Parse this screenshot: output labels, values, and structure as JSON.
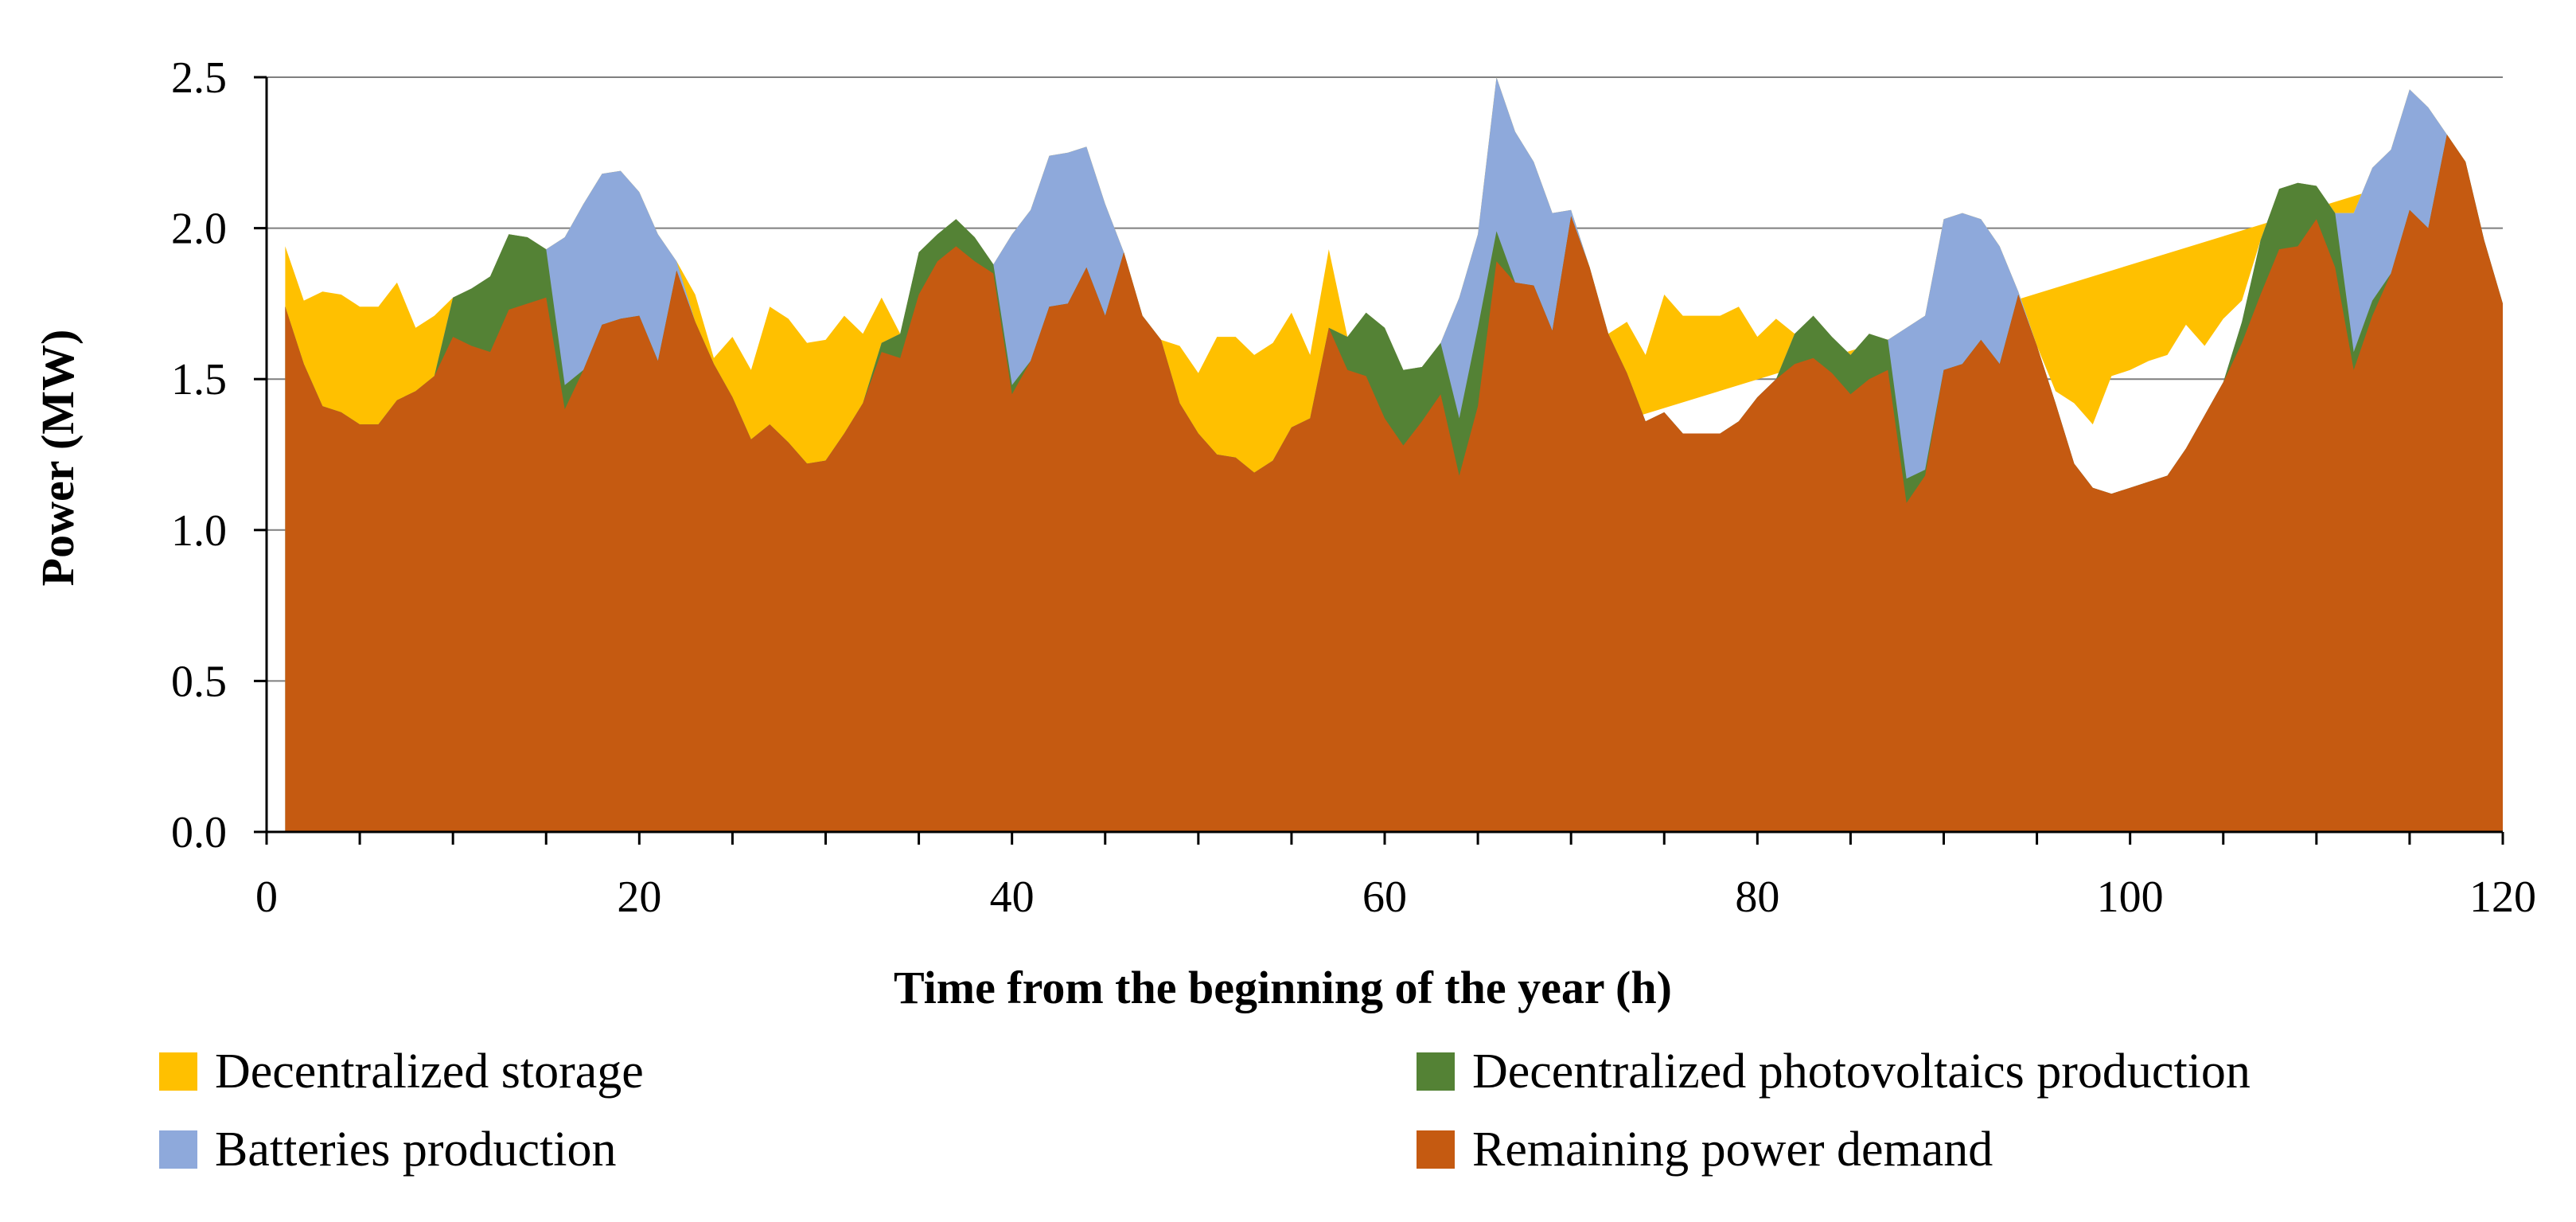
{
  "chart_data": {
    "type": "area",
    "stacked": true,
    "title": "",
    "xlabel": "Time from the beginning of the year (h)",
    "ylabel": "Power (MW)",
    "xlim": [
      0,
      120
    ],
    "ylim": [
      0,
      2.5
    ],
    "x_ticks": [
      0,
      20,
      40,
      60,
      80,
      100,
      120
    ],
    "y_ticks": [
      0.0,
      0.5,
      1.0,
      1.5,
      2.0,
      2.5
    ],
    "x_tick_labels": [
      "0",
      "20",
      "40",
      "60",
      "80",
      "100",
      "120"
    ],
    "y_tick_labels": [
      "0.0",
      "0.5",
      "1.0",
      "1.5",
      "2.0",
      "2.5"
    ],
    "grid": "horizontal",
    "legend_position": "bottom",
    "x_start": 1,
    "x_step": 1,
    "total": [
      1.94,
      1.76,
      1.79,
      1.78,
      1.74,
      1.74,
      1.82,
      1.67,
      1.71,
      1.77,
      1.8,
      1.84,
      1.98,
      1.97,
      1.93,
      1.97,
      2.08,
      2.18,
      2.19,
      2.12,
      1.98,
      1.89,
      1.78,
      1.57,
      1.64,
      1.53,
      1.74,
      1.7,
      1.62,
      1.63,
      1.71,
      1.65,
      1.77,
      1.65,
      1.92,
      1.98,
      2.03,
      1.97,
      1.88,
      1.98,
      2.06,
      2.24,
      2.25,
      2.27,
      2.08,
      1.92,
      1.7,
      1.62,
      1.61,
      1.52,
      1.64,
      1.64,
      1.58,
      1.62,
      1.72,
      1.58,
      1.93,
      1.64,
      1.72,
      1.67,
      1.53,
      1.54,
      1.62,
      1.77,
      1.98,
      2.4,
      2.32,
      2.22,
      2.05,
      2.06,
      1.85,
      1.64,
      1.69,
      1.58,
      1.78,
      1.71,
      1.71,
      1.71,
      1.74,
      1.64,
      1.7,
      1.65,
      1.71,
      1.64,
      1.58,
      1.65,
      1.63,
      1.67,
      1.71,
      2.03,
      2.05,
      2.03,
      1.94,
      1.79,
      1.64,
      1.46,
      1.42,
      1.35,
      1.51,
      1.53,
      1.56,
      1.58,
      1.68,
      1.61,
      1.7,
      1.69,
      1.96,
      2.13,
      2.15,
      2.14,
      2.05,
      2.1,
      2.2,
      2.32,
      2.46,
      2.4,
      2.31,
      2.22,
      1.96,
      1.75
    ],
    "series": [
      {
        "name": "Remaining power demand",
        "color": "#C55A11",
        "values": [
          1.74,
          1.55,
          1.41,
          1.39,
          1.35,
          1.35,
          1.43,
          1.46,
          1.51,
          1.64,
          1.61,
          1.59,
          1.73,
          1.75,
          1.77,
          1.4,
          1.53,
          1.68,
          1.7,
          1.71,
          1.56,
          1.86,
          1.69,
          1.55,
          1.44,
          1.3,
          1.35,
          1.29,
          1.22,
          1.23,
          1.32,
          1.42,
          1.59,
          1.57,
          1.78,
          1.89,
          1.94,
          1.89,
          1.85,
          1.45,
          1.56,
          1.74,
          1.75,
          1.87,
          1.71,
          1.92,
          1.71,
          1.63,
          1.42,
          1.32,
          1.25,
          1.24,
          1.19,
          1.23,
          1.34,
          1.37,
          1.67,
          1.53,
          1.51,
          1.37,
          1.28,
          1.36,
          1.45,
          1.18,
          1.41,
          1.89,
          1.82,
          1.81,
          1.66,
          2.04,
          1.87,
          1.65,
          1.52,
          1.36,
          1.39,
          1.32,
          1.32,
          1.32,
          1.36,
          1.44,
          1.5,
          1.55,
          1.57,
          1.52,
          1.45,
          1.5,
          1.53,
          1.09,
          1.18,
          1.53,
          1.55,
          1.63,
          1.55,
          1.78,
          1.61,
          1.42,
          1.22,
          1.14,
          1.12,
          1.14,
          1.16,
          1.18,
          1.27,
          1.38,
          1.49,
          1.62,
          1.78,
          1.93,
          1.94,
          2.03,
          1.87,
          1.53,
          1.71,
          1.85,
          2.06,
          2.0,
          2.31,
          2.22,
          1.96,
          1.75
        ]
      },
      {
        "name": "Decentralized photovoltaics production",
        "color": "#548235",
        "values": [
          0,
          0,
          0,
          0,
          0,
          0,
          0,
          0,
          0,
          0.13,
          0.19,
          0.25,
          0.25,
          0.22,
          0.16,
          0.08,
          0,
          0,
          0,
          0,
          0,
          0,
          0,
          0,
          0,
          0,
          0,
          0,
          0,
          0,
          0,
          0,
          0.03,
          0.08,
          0.14,
          0.09,
          0.09,
          0.08,
          0.03,
          0.03,
          0,
          0,
          0,
          0,
          0,
          0,
          0,
          0,
          0,
          0,
          0,
          0,
          0,
          0,
          0,
          0,
          0,
          0.11,
          0.21,
          0.3,
          0.25,
          0.18,
          0.17,
          0.19,
          0.26,
          0.1,
          0,
          0,
          0,
          0,
          0,
          0,
          0,
          0,
          0,
          0,
          0,
          0,
          0,
          0,
          0,
          0.1,
          0.14,
          0.12,
          0.13,
          0.15,
          0.1,
          0.08,
          0.02,
          0,
          0,
          0,
          0,
          0,
          0,
          0,
          0,
          0,
          0,
          0,
          0,
          0,
          0,
          0,
          0,
          0.07,
          0.18,
          0.2,
          0.21,
          0.11,
          0.18,
          0.06,
          0.05,
          0,
          0,
          0,
          0,
          0,
          0,
          0
        ]
      },
      {
        "name": "Batteries production",
        "color": "#8EA9DB",
        "values": [
          0,
          0,
          0,
          0,
          0,
          0,
          0,
          0,
          0,
          0,
          0,
          0,
          0,
          0,
          0,
          0.49,
          0.55,
          0.5,
          0.49,
          0.41,
          0.42,
          0.03,
          0,
          0,
          0,
          0,
          0,
          0,
          0,
          0,
          0,
          0,
          0,
          0,
          0,
          0,
          0,
          0,
          0,
          0.5,
          0.5,
          0.5,
          0.5,
          0.4,
          0.37,
          0,
          0,
          0,
          0,
          0,
          0,
          0,
          0,
          0,
          0,
          0,
          0,
          0,
          0,
          0,
          0,
          0,
          0,
          0.4,
          0.31,
          0.51,
          0.5,
          0.41,
          0.39,
          0.02,
          0,
          0,
          0,
          0,
          0,
          0,
          0,
          0,
          0,
          0,
          0,
          0,
          0,
          0,
          0,
          0,
          0,
          0.5,
          0.51,
          0.5,
          0.5,
          0.4,
          0.39,
          0.01,
          0,
          0,
          0,
          0,
          0,
          0,
          0,
          0,
          0,
          0,
          0,
          0,
          0,
          0,
          0,
          0,
          0,
          0.46,
          0.44,
          0.41,
          0.4,
          0.4,
          0,
          0,
          0,
          0
        ]
      },
      {
        "name": "Decentralized storage",
        "color": "#FFC000",
        "values": [
          0.2,
          0.21,
          0.38,
          0.39,
          0.39,
          0.39,
          0.39,
          0.21,
          0.2,
          0,
          0,
          0,
          0,
          0,
          0,
          0,
          0,
          0,
          0,
          0,
          0,
          0,
          0.09,
          0.02,
          0.2,
          0.23,
          0.39,
          0.41,
          0.4,
          0.4,
          0.39,
          0.23,
          0.15,
          0,
          0,
          0,
          0,
          0,
          0,
          0,
          0,
          0,
          0,
          0,
          0,
          0,
          0,
          0,
          0.19,
          0.2,
          0.39,
          0.4,
          0.39,
          0.39,
          0.38,
          0.21,
          0.26,
          0,
          0,
          0,
          0,
          0,
          0,
          0,
          0,
          0,
          0,
          0,
          0,
          0,
          0,
          0,
          0.17,
          0.22,
          0.39,
          0.39,
          0.39,
          0.39,
          0.38,
          0.2,
          0.2,
          0,
          0,
          0,
          0,
          0,
          0,
          0,
          0,
          0,
          0,
          0,
          0,
          0,
          0,
          0.04,
          0.2,
          0.21,
          0.39,
          0.39,
          0.4,
          0.4,
          0.41,
          0.23,
          0.21,
          0.07,
          0,
          0,
          0,
          0,
          0,
          0,
          0,
          0,
          0,
          0,
          0,
          0
        ]
      }
    ],
    "legend": [
      {
        "label": "Decentralized storage",
        "color": "#FFC000"
      },
      {
        "label": "Decentralized photovoltaics production",
        "color": "#548235"
      },
      {
        "label": "Batteries production",
        "color": "#8EA9DB"
      },
      {
        "label": "Remaining power demand",
        "color": "#C55A11"
      }
    ]
  }
}
